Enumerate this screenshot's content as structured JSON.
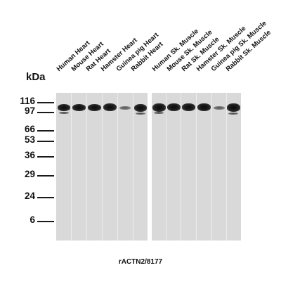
{
  "lanes_left": [
    "Human Heart",
    "Mouse Heart",
    "Rat Heart",
    "Hamster Heart",
    "Guinea pig Heart",
    "Rabbit Heart"
  ],
  "lanes_right": [
    "Human Sk. Muscle",
    "Mouse Sk. Muscle",
    "Rat Sk. Muscle",
    "Hamster Sk. Muscle",
    "Guinea pig Sk. Muscle",
    "Rabbit Sk. Muscle"
  ],
  "axis_unit": "kDa",
  "markers": [
    "116",
    "97",
    "66",
    "53",
    "36",
    "29",
    "24",
    "6"
  ],
  "antibody": "rACTN2/8177"
}
